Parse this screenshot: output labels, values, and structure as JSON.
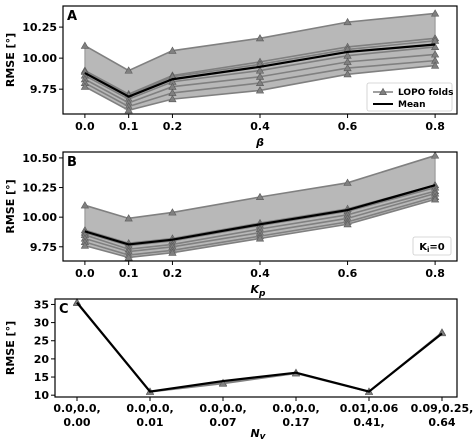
{
  "colors": {
    "fold": "#808080",
    "band": "#b8b8b8",
    "mean": "#000000",
    "band_edge": "#666666"
  },
  "chart_data": [
    {
      "panel": "A",
      "type": "line",
      "x": [
        0.0,
        0.1,
        0.2,
        0.4,
        0.6,
        0.8
      ],
      "x_tick_labels": [
        "0.0",
        "0.1",
        "0.2",
        "0.4",
        "0.6",
        "0.8"
      ],
      "xlim": [
        -0.05,
        0.85
      ],
      "ylim": [
        9.55,
        10.42
      ],
      "y_ticks": [
        9.75,
        10.0,
        10.25
      ],
      "y_tick_labels": [
        "9.75",
        "10.00",
        "10.25"
      ],
      "ylabel": "RMSE [°]",
      "xlabel": "β",
      "grid": false,
      "shaded_band": true,
      "legend": {
        "position": "bottom-right",
        "entries": [
          "LOPO folds",
          "Mean"
        ]
      },
      "folds": [
        [
          10.1,
          9.9,
          10.06,
          10.16,
          10.29,
          10.36
        ],
        [
          9.9,
          9.71,
          9.86,
          9.97,
          10.09,
          10.16
        ],
        [
          9.89,
          9.7,
          9.85,
          9.95,
          10.07,
          10.14
        ],
        [
          9.86,
          9.67,
          9.81,
          9.9,
          10.02,
          10.09
        ],
        [
          9.83,
          9.64,
          9.77,
          9.85,
          9.97,
          10.03
        ],
        [
          9.8,
          9.61,
          9.72,
          9.8,
          9.92,
          9.98
        ],
        [
          9.77,
          9.58,
          9.67,
          9.74,
          9.87,
          9.94
        ]
      ],
      "mean": [
        9.88,
        9.69,
        9.83,
        9.93,
        10.05,
        10.11
      ]
    },
    {
      "panel": "B",
      "type": "line",
      "x": [
        0.0,
        0.1,
        0.2,
        0.4,
        0.6,
        0.8
      ],
      "x_tick_labels": [
        "0.0",
        "0.1",
        "0.2",
        "0.4",
        "0.6",
        "0.8"
      ],
      "xlim": [
        -0.05,
        0.85
      ],
      "ylim": [
        9.63,
        10.55
      ],
      "y_ticks": [
        9.75,
        10.0,
        10.25,
        10.5
      ],
      "y_tick_labels": [
        "9.75",
        "10.00",
        "10.25",
        "10.50"
      ],
      "ylabel": "RMSE [°]",
      "xlabel": "Kp",
      "grid": false,
      "shaded_band": true,
      "annotation": "Ki=0",
      "folds": [
        [
          10.1,
          9.99,
          10.04,
          10.17,
          10.29,
          10.52
        ],
        [
          9.89,
          9.78,
          9.82,
          9.95,
          10.07,
          10.27
        ],
        [
          9.87,
          9.76,
          9.8,
          9.93,
          10.05,
          10.25
        ],
        [
          9.85,
          9.73,
          9.77,
          9.9,
          10.02,
          10.22
        ],
        [
          9.82,
          9.71,
          9.75,
          9.87,
          9.99,
          10.2
        ],
        [
          9.79,
          9.68,
          9.72,
          9.84,
          9.96,
          10.17
        ],
        [
          9.76,
          9.66,
          9.7,
          9.82,
          9.94,
          10.15
        ]
      ],
      "mean": [
        9.88,
        9.77,
        9.81,
        9.94,
        10.06,
        10.27
      ]
    },
    {
      "panel": "C",
      "type": "line",
      "categories": [
        "0.0,0.0,\n0.00",
        "0.0,0.0,\n0.01",
        "0.0,0.0,\n0.07",
        "0.0,0.0,\n0.17",
        "0.01,0.06\n0.41,",
        "0.09,0.25,\n0.64"
      ],
      "ylim": [
        9.5,
        36.5
      ],
      "y_ticks": [
        10,
        15,
        20,
        25,
        30,
        35
      ],
      "y_tick_labels": [
        "10",
        "15",
        "20",
        "25",
        "30",
        "35"
      ],
      "ylabel": "RMSE [°]",
      "xlabel": "Nv",
      "grid": false,
      "folds": [
        [
          35.6,
          11.0,
          13.4,
          16.2,
          11.0,
          27.3
        ],
        [
          35.4,
          10.9,
          13.2,
          16.0,
          10.9,
          27.1
        ]
      ],
      "mean": [
        35.5,
        11.0,
        13.9,
        16.2,
        11.0,
        27.0
      ]
    }
  ]
}
